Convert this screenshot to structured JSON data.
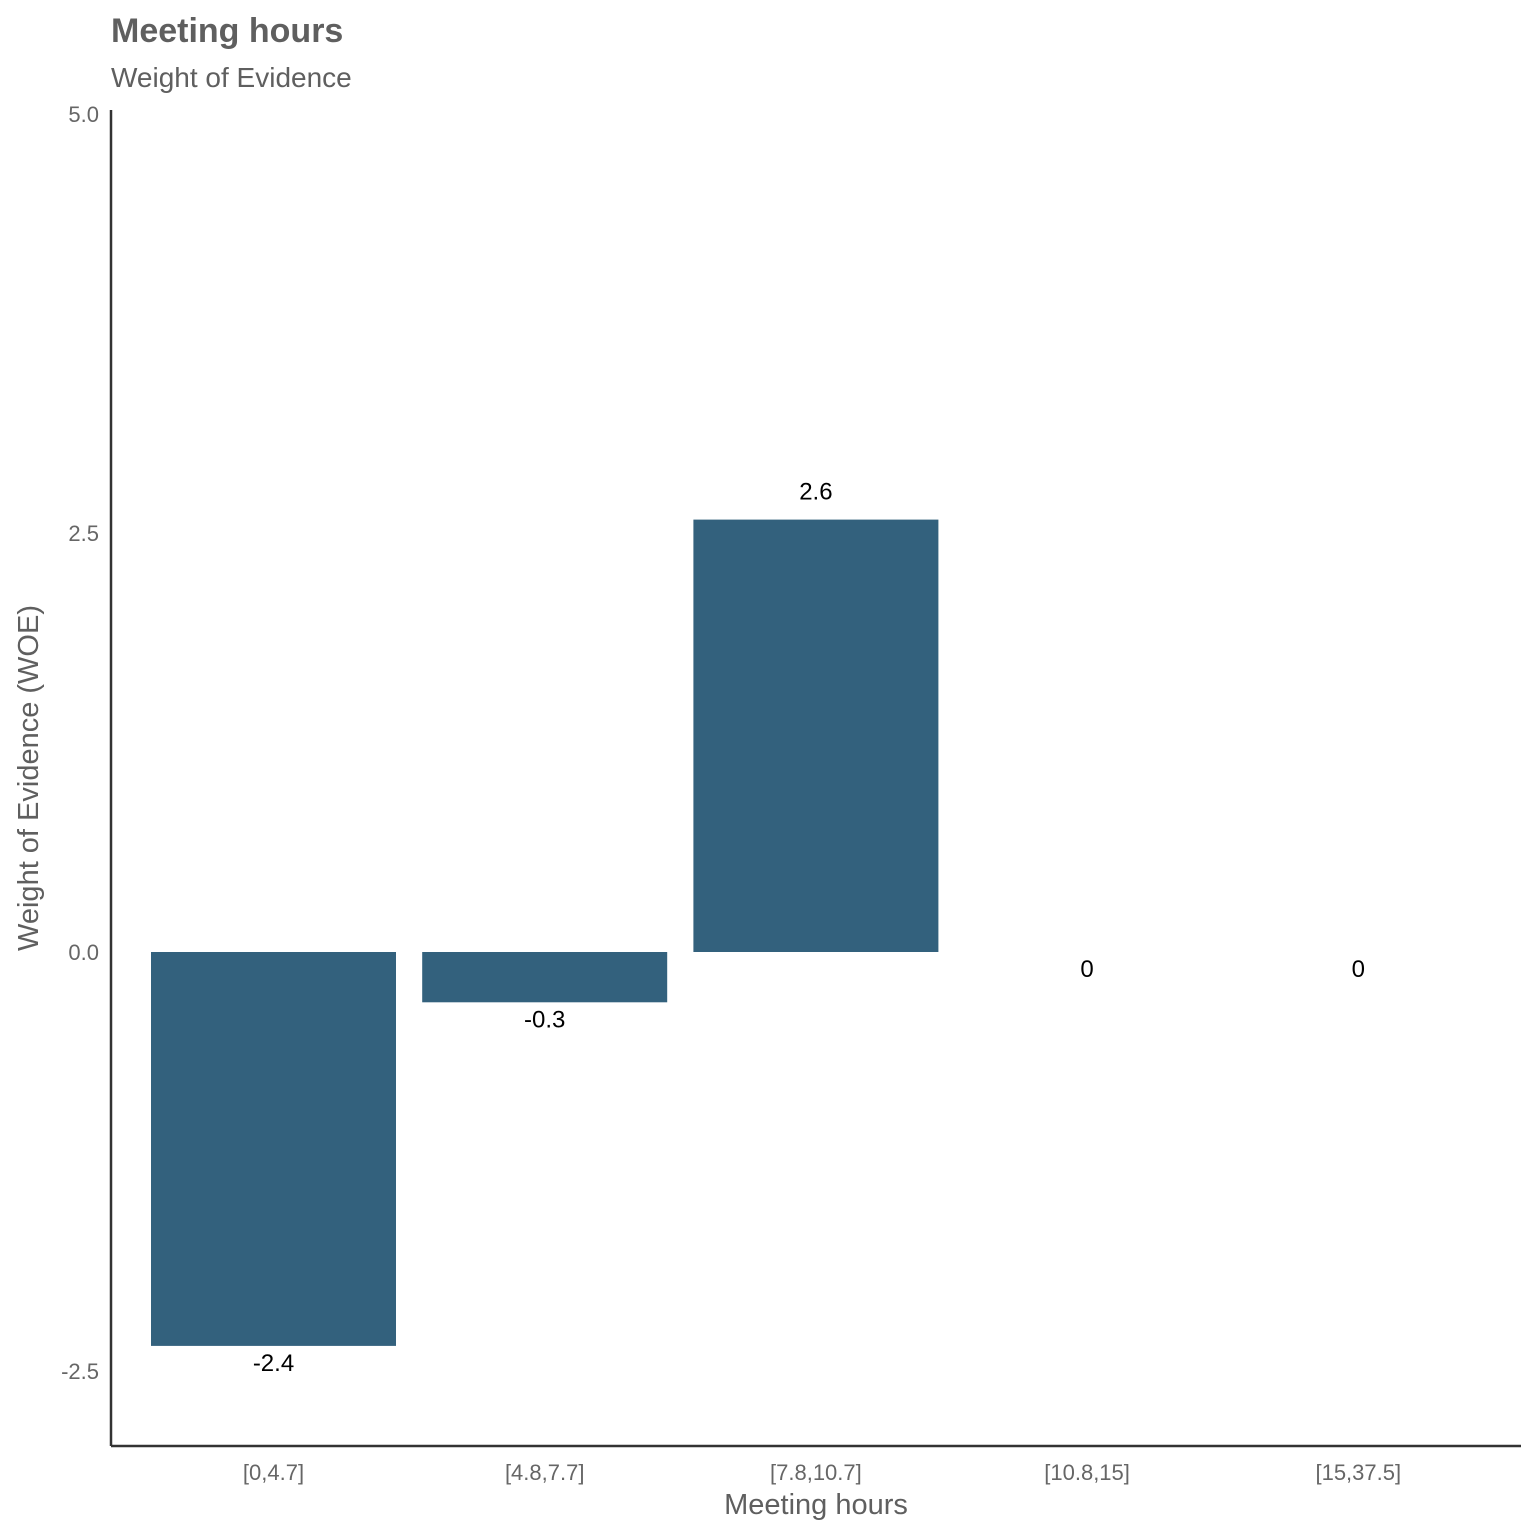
{
  "chart_data": {
    "type": "bar",
    "title": "Meeting hours",
    "subtitle": "Weight of Evidence",
    "xlabel": "Meeting hours",
    "ylabel": "Weight of Evidence (WOE)",
    "categories": [
      "[0,4.7]",
      "[4.8,7.7]",
      "[7.8,10.7]",
      "[10.8,15]",
      "[15,37.5]"
    ],
    "values": [
      -2.35,
      -0.3,
      2.58,
      0,
      0
    ],
    "data_labels": [
      "-2.4",
      "-0.3",
      "2.6",
      "0",
      "0"
    ],
    "ylim": [
      -2.9,
      5.0
    ],
    "yticks": [
      -2.5,
      0.0,
      2.5,
      5.0
    ],
    "ytick_labels": [
      "-2.5",
      "0.0",
      "2.5",
      "5.0"
    ],
    "grid": false,
    "legend": "none",
    "bar_color": "#33617d"
  }
}
